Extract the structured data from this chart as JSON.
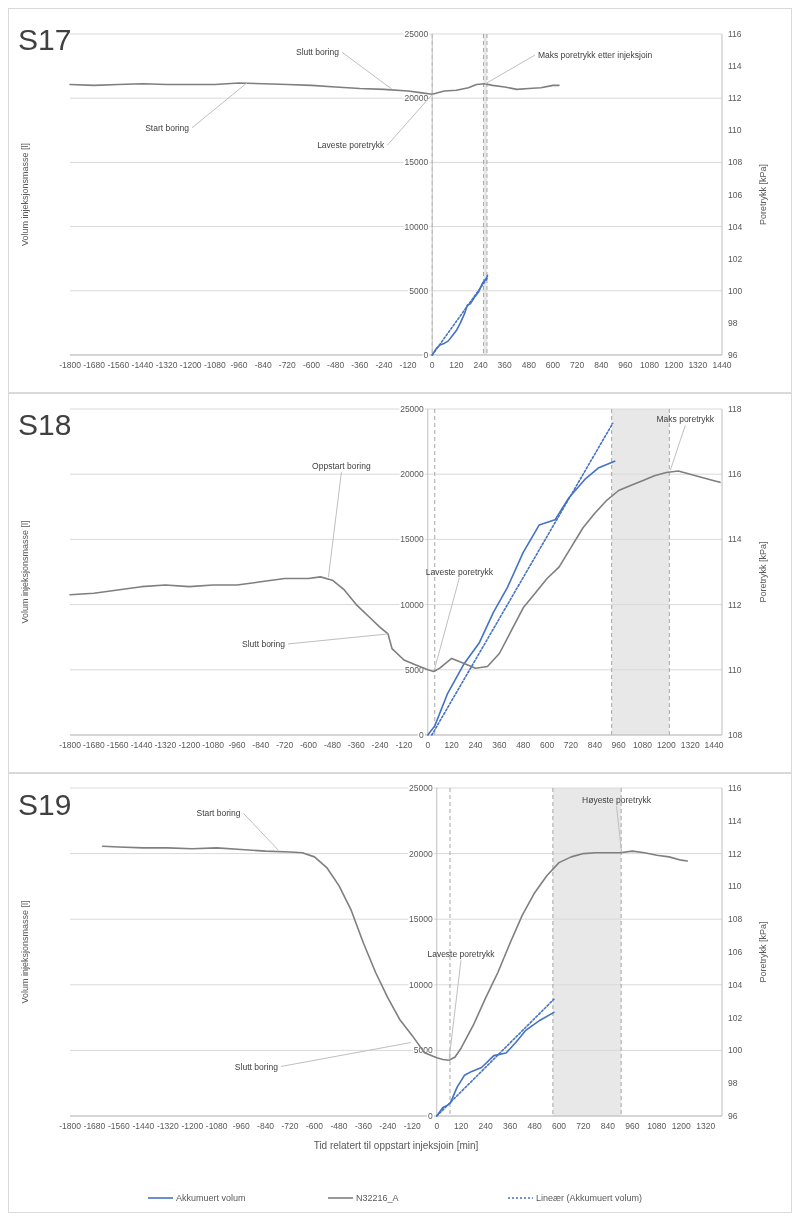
{
  "chart_data": [
    {
      "type": "line",
      "title": "S17",
      "ylabel": "Volum injeksjonsmasse [l]",
      "y2label": "Poretrykk [kPa]",
      "xlim": [
        -1800,
        1440
      ],
      "xticks": [
        -1800,
        -1680,
        -1560,
        -1440,
        -1320,
        -1200,
        -1080,
        -960,
        -840,
        -720,
        -600,
        -480,
        -360,
        -240,
        -120,
        0,
        120,
        240,
        360,
        480,
        600,
        720,
        840,
        960,
        1080,
        1200,
        1320,
        1440
      ],
      "ylim": [
        0,
        25000
      ],
      "yticks": [
        0,
        5000,
        10000,
        15000,
        20000,
        25000
      ],
      "y2lim": [
        96,
        116
      ],
      "y2ticks": [
        96,
        98,
        100,
        102,
        104,
        106,
        108,
        110,
        112,
        114,
        116
      ],
      "grid": "y",
      "series": [
        {
          "color": "#4472c4",
          "x": [
            0,
            20,
            40,
            60,
            80,
            100,
            120,
            140,
            160,
            175,
            190,
            210,
            230,
            250,
            270,
            275
          ],
          "values": [
            0,
            500,
            800,
            900,
            1100,
            1500,
            1900,
            2500,
            3200,
            3900,
            4000,
            4500,
            4900,
            5600,
            6000,
            6200
          ]
        },
        {
          "color": "#7f7f7f",
          "axis": "y2",
          "x": [
            -1800,
            -1680,
            -1560,
            -1440,
            -1320,
            -1200,
            -1080,
            -960,
            -840,
            -720,
            -600,
            -480,
            -360,
            -240,
            -120,
            -60,
            0,
            60,
            120,
            180,
            220,
            260,
            300,
            360,
            420,
            480,
            540,
            600,
            630
          ],
          "values": [
            112.85,
            112.8,
            112.85,
            112.9,
            112.85,
            112.85,
            112.85,
            112.95,
            112.9,
            112.85,
            112.8,
            112.7,
            112.6,
            112.55,
            112.45,
            112.35,
            112.25,
            112.45,
            112.5,
            112.65,
            112.85,
            112.9,
            112.8,
            112.7,
            112.55,
            112.6,
            112.65,
            112.8,
            112.8
          ]
        },
        {
          "color": "#4472c4",
          "line_style": "dotted",
          "x": [
            0,
            275
          ],
          "values": [
            0,
            6000
          ]
        }
      ],
      "ref_lines": [
        {
          "axis": "x",
          "value": 0,
          "color": "#a6a6a6",
          "line_style": "dashed"
        },
        {
          "axis": "x",
          "value": 255,
          "color": "#a6a6a6",
          "line_style": "dashed"
        },
        {
          "axis": "x",
          "value": 272,
          "color": "#a6a6a6",
          "line_style": "dashed"
        }
      ],
      "bands": [
        {
          "axis": "x",
          "from": 255,
          "to": 272,
          "color": "#e8e8e8"
        }
      ],
      "annotations": [
        {
          "text": "Slutt boring",
          "x": -200,
          "y": 20700
        },
        {
          "text": "Start boring",
          "x": -920,
          "y": 21200
        },
        {
          "text": "Laveste poretrykk",
          "x": 0,
          "y": 20300
        },
        {
          "text": "Maks poretrykk etter injeksjoin",
          "x": 262,
          "y": 21100
        }
      ]
    },
    {
      "type": "line",
      "title": "S18",
      "ylabel": "Volum injeksjonsmasse [l]",
      "y2label": "Poretrykk [kPa]",
      "xlim": [
        -1800,
        1480
      ],
      "xticks": [
        -1800,
        -1680,
        -1560,
        -1440,
        -1320,
        -1200,
        -1080,
        -960,
        -840,
        -720,
        -600,
        -480,
        -360,
        -240,
        -120,
        0,
        120,
        240,
        360,
        480,
        600,
        720,
        840,
        960,
        1080,
        1200,
        1320,
        1440
      ],
      "ylim": [
        0,
        25000
      ],
      "yticks": [
        0,
        5000,
        10000,
        15000,
        20000,
        25000
      ],
      "y2lim": [
        108,
        118
      ],
      "y2ticks": [
        108,
        110,
        112,
        114,
        116,
        118
      ],
      "grid": "y",
      "series": [
        {
          "color": "#4472c4",
          "x": [
            0,
            35,
            100,
            180,
            260,
            330,
            400,
            480,
            560,
            640,
            710,
            790,
            860,
            940
          ],
          "values": [
            0,
            700,
            3200,
            5400,
            7100,
            9400,
            11300,
            14000,
            16100,
            16500,
            18200,
            19600,
            20500,
            21000
          ]
        },
        {
          "color": "#7f7f7f",
          "axis": "y2",
          "x": [
            -1800,
            -1680,
            -1560,
            -1440,
            -1320,
            -1200,
            -1080,
            -960,
            -840,
            -720,
            -600,
            -540,
            -480,
            -420,
            -360,
            -300,
            -240,
            -200,
            -180,
            -120,
            -60,
            0,
            30,
            60,
            120,
            180,
            240,
            300,
            360,
            420,
            480,
            540,
            600,
            660,
            720,
            780,
            840,
            900,
            960,
            1020,
            1080,
            1140,
            1200,
            1260,
            1320,
            1380,
            1440,
            1470
          ],
          "values": [
            112.3,
            112.35,
            112.45,
            112.55,
            112.6,
            112.55,
            112.6,
            112.6,
            112.7,
            112.8,
            112.8,
            112.85,
            112.75,
            112.45,
            112,
            111.65,
            111.3,
            111.1,
            110.65,
            110.3,
            110.15,
            110,
            109.95,
            110.05,
            110.35,
            110.2,
            110.05,
            110.1,
            110.5,
            111.2,
            111.9,
            112.35,
            112.8,
            113.15,
            113.75,
            114.35,
            114.8,
            115.2,
            115.5,
            115.65,
            115.8,
            115.95,
            116.05,
            116.1,
            116,
            115.9,
            115.8,
            115.75
          ]
        },
        {
          "color": "#4472c4",
          "line_style": "dotted",
          "x": [
            20,
            930
          ],
          "values": [
            0,
            23900
          ]
        }
      ],
      "ref_lines": [
        {
          "axis": "x",
          "value": 35,
          "color": "#a6a6a6",
          "line_style": "dashed"
        },
        {
          "axis": "x",
          "value": 925,
          "color": "#a6a6a6",
          "line_style": "dashed"
        },
        {
          "axis": "x",
          "value": 1215,
          "color": "#a6a6a6",
          "line_style": "dashed"
        }
      ],
      "bands": [
        {
          "axis": "x",
          "from": 925,
          "to": 1215,
          "color": "#e8e8e8"
        }
      ],
      "annotations": [
        {
          "text": "Oppstart boring",
          "x": -500,
          "y": 12100
        },
        {
          "text": "Slutt boring",
          "x": -200,
          "y": 7750
        },
        {
          "text": "Laveste poretrykk",
          "x": 33,
          "y": 5000
        },
        {
          "text": "Maks poretrykk",
          "x": 1220,
          "y": 20300
        }
      ]
    },
    {
      "type": "line",
      "title": "S19",
      "xlabel": "Tid relatert til oppstart injeksjoin [min]",
      "ylabel": "Volum injeksjonsmasse [l]",
      "y2label": "Poretrykk [kPa]",
      "xlim": [
        -1800,
        1400
      ],
      "xticks": [
        -1800,
        -1680,
        -1560,
        -1440,
        -1320,
        -1200,
        -1080,
        -960,
        -840,
        -720,
        -600,
        -480,
        -360,
        -240,
        -120,
        0,
        120,
        240,
        360,
        480,
        600,
        720,
        840,
        960,
        1080,
        1200,
        1320
      ],
      "ylim": [
        0,
        25000
      ],
      "yticks": [
        0,
        5000,
        10000,
        15000,
        20000,
        25000
      ],
      "y2lim": [
        96,
        116
      ],
      "y2ticks": [
        96,
        98,
        100,
        102,
        104,
        106,
        108,
        110,
        112,
        114,
        116
      ],
      "grid": "y",
      "legend": "bottom",
      "series": [
        {
          "name": "Akkumuert volum",
          "color": "#4472c4",
          "x": [
            0,
            30,
            55,
            67,
            100,
            136,
            172,
            220,
            280,
            340,
            388,
            435,
            507,
            575
          ],
          "values": [
            0,
            650,
            850,
            1000,
            2200,
            3100,
            3400,
            3700,
            4600,
            4800,
            5600,
            6500,
            7300,
            7900
          ]
        },
        {
          "name": "N32216_A",
          "color": "#7f7f7f",
          "axis": "y2",
          "x": [
            -1640,
            -1560,
            -1440,
            -1320,
            -1200,
            -1080,
            -960,
            -840,
            -720,
            -660,
            -600,
            -540,
            -480,
            -420,
            -360,
            -300,
            -240,
            -180,
            -120,
            -60,
            0,
            30,
            60,
            90,
            120,
            180,
            240,
            300,
            360,
            420,
            480,
            540,
            600,
            660,
            720,
            780,
            840,
            900,
            960,
            1020,
            1080,
            1140,
            1200,
            1230
          ],
          "values": [
            112.45,
            112.4,
            112.35,
            112.35,
            112.3,
            112.35,
            112.25,
            112.15,
            112.1,
            112.05,
            111.8,
            111.15,
            110.05,
            108.55,
            106.55,
            104.75,
            103.2,
            101.85,
            100.9,
            99.85,
            99.55,
            99.45,
            99.4,
            99.6,
            100.15,
            101.55,
            103.2,
            104.75,
            106.55,
            108.25,
            109.6,
            110.65,
            111.45,
            111.8,
            112,
            112.05,
            112.05,
            112.05,
            112.15,
            112.05,
            111.9,
            111.8,
            111.6,
            111.55
          ]
        },
        {
          "name": "Lineær (Akkumuert volum)",
          "color": "#4472c4",
          "line_style": "dotted",
          "x": [
            0,
            575
          ],
          "values": [
            0,
            8900
          ]
        }
      ],
      "ref_lines": [
        {
          "axis": "x",
          "value": 65,
          "color": "#a6a6a6",
          "line_style": "dashed"
        },
        {
          "axis": "x",
          "value": 570,
          "color": "#a6a6a6",
          "line_style": "dashed"
        },
        {
          "axis": "x",
          "value": 905,
          "color": "#a6a6a6",
          "line_style": "dashed"
        }
      ],
      "bands": [
        {
          "axis": "x",
          "from": 570,
          "to": 905,
          "color": "#e8e8e8"
        }
      ],
      "annotations": [
        {
          "text": "Start boring",
          "x": -777,
          "y": 20250
        },
        {
          "text": "Slutt boring",
          "x": -127,
          "y": 5600
        },
        {
          "text": "Laveste poretrykk",
          "x": 60,
          "y": 4250
        },
        {
          "text": "Høyeste poretrykk",
          "x": 907,
          "y": 20100
        }
      ]
    }
  ]
}
